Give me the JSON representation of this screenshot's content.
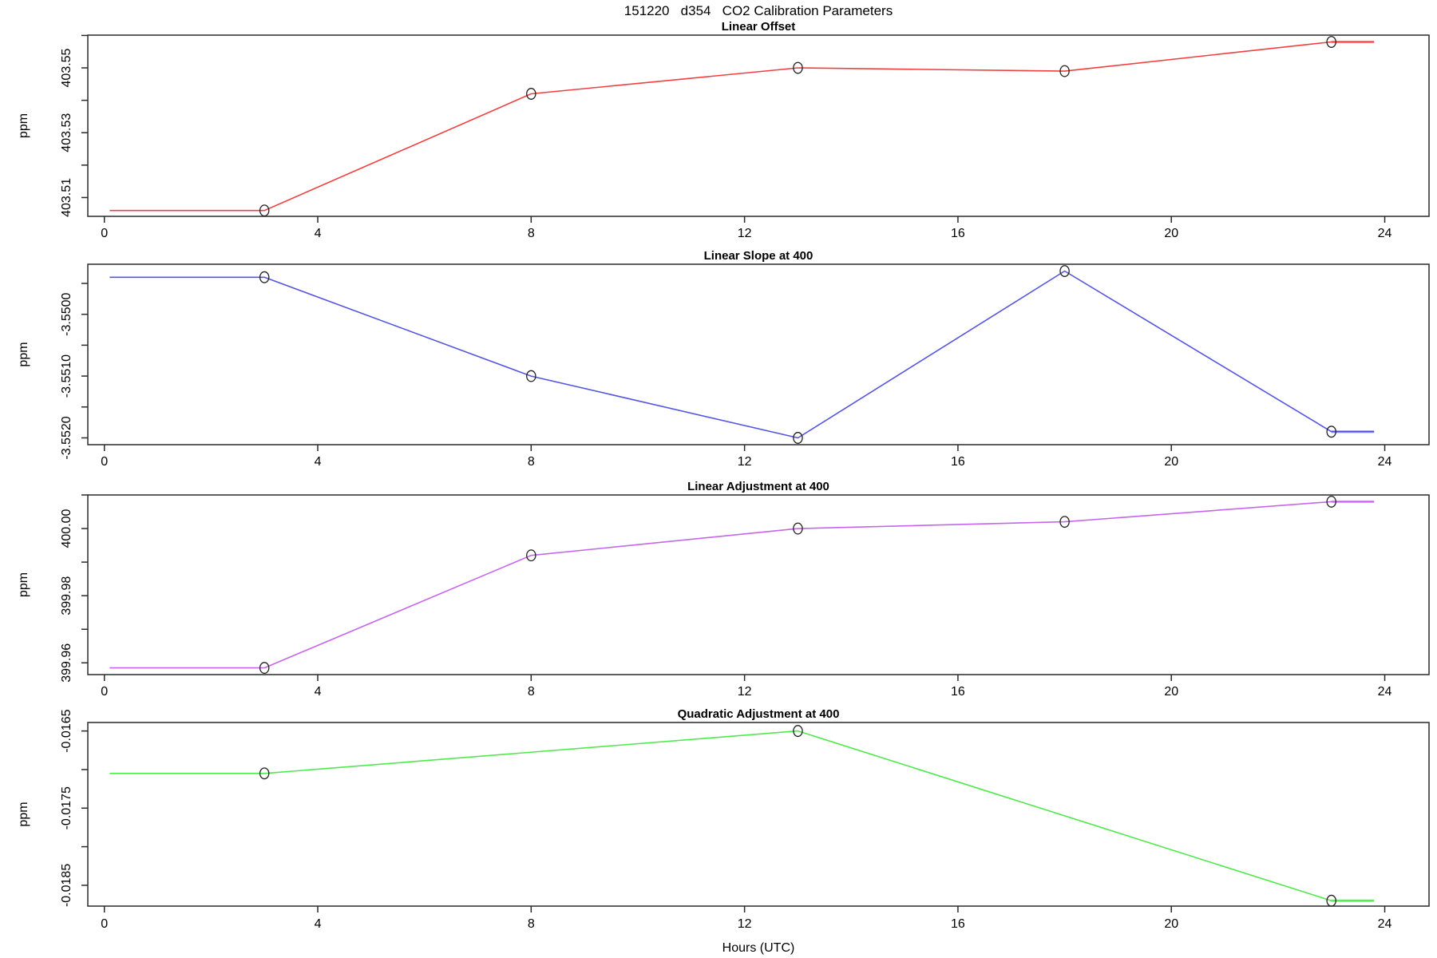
{
  "header": {
    "title": "151220   d354   CO2 Calibration Parameters"
  },
  "axes": {
    "xlabel": "Hours (UTC)",
    "ylabel": "ppm"
  },
  "chart_data": [
    {
      "type": "line",
      "title": "Linear Offset",
      "ylabel": "ppm",
      "color": "#f03030",
      "marker": "open-circle",
      "x": [
        0.1,
        3,
        8,
        13,
        18,
        23,
        23.8
      ],
      "y": [
        403.506,
        403.506,
        403.542,
        403.55,
        403.549,
        403.558,
        403.558
      ],
      "markers_at_x": [
        3,
        8,
        13,
        18,
        23
      ],
      "markers_at_y": [
        403.506,
        403.542,
        403.55,
        403.549,
        403.558
      ],
      "xlim": [
        -0.31,
        24.83
      ],
      "x_ticks": [
        0,
        4,
        8,
        12,
        16,
        20,
        24
      ],
      "ylim": [
        403.5042,
        403.5601
      ],
      "y_ticks": [
        {
          "v": 403.51,
          "label": "403.51"
        },
        {
          "v": 403.52,
          "label": ""
        },
        {
          "v": 403.53,
          "label": "403.53"
        },
        {
          "v": 403.54,
          "label": ""
        },
        {
          "v": 403.55,
          "label": "403.55"
        },
        {
          "v": 403.56,
          "label": ""
        }
      ],
      "grid": false,
      "legend": "none"
    },
    {
      "type": "line",
      "title": "Linear Slope at 400",
      "ylabel": "ppm",
      "color": "#4646de",
      "marker": "open-circle",
      "x": [
        0.1,
        3,
        8,
        13,
        18,
        23,
        23.8
      ],
      "y": [
        -3.5494,
        -3.5494,
        -3.551,
        -3.552,
        -3.5493,
        -3.5519,
        -3.5519
      ],
      "markers_at_x": [
        3,
        8,
        13,
        18,
        23
      ],
      "markers_at_y": [
        -3.5494,
        -3.551,
        -3.552,
        -3.5493,
        -3.5519
      ],
      "xlim": [
        -0.31,
        24.83
      ],
      "x_ticks": [
        0,
        4,
        8,
        12,
        16,
        20,
        24
      ],
      "ylim": [
        -3.55211,
        -3.54919
      ],
      "y_ticks": [
        {
          "v": -3.552,
          "label": "-3.5520"
        },
        {
          "v": -3.5515,
          "label": ""
        },
        {
          "v": -3.551,
          "label": "-3.5510"
        },
        {
          "v": -3.5505,
          "label": ""
        },
        {
          "v": -3.55,
          "label": "-3.5500"
        },
        {
          "v": -3.5495,
          "label": ""
        }
      ],
      "grid": false,
      "legend": "none"
    },
    {
      "type": "line",
      "title": "Linear Adjustment at 400",
      "ylabel": "ppm",
      "color": "#c158ec",
      "marker": "open-circle",
      "x": [
        0.1,
        3,
        8,
        13,
        18,
        23,
        23.8
      ],
      "y": [
        399.9585,
        399.9585,
        399.992,
        400.0,
        400.002,
        400.008,
        400.008
      ],
      "markers_at_x": [
        3,
        8,
        13,
        18,
        23
      ],
      "markers_at_y": [
        399.9585,
        399.992,
        400.0,
        400.002,
        400.008
      ],
      "xlim": [
        -0.31,
        24.83
      ],
      "x_ticks": [
        0,
        4,
        8,
        12,
        16,
        20,
        24
      ],
      "ylim": [
        399.9565,
        400.01
      ],
      "y_ticks": [
        {
          "v": 399.96,
          "label": "399.96"
        },
        {
          "v": 399.97,
          "label": ""
        },
        {
          "v": 399.98,
          "label": "399.98"
        },
        {
          "v": 399.99,
          "label": ""
        },
        {
          "v": 400.0,
          "label": "400.00"
        },
        {
          "v": 400.01,
          "label": ""
        }
      ],
      "grid": false,
      "legend": "none"
    },
    {
      "type": "line",
      "title": "Quadratic Adjustment at 400",
      "ylabel": "ppm",
      "color": "#3fe83f",
      "marker": "open-circle",
      "x": [
        0.1,
        3,
        13,
        23,
        23.8
      ],
      "y": [
        -0.01705,
        -0.01705,
        -0.0165,
        -0.0187,
        -0.0187
      ],
      "markers_at_x": [
        3,
        13,
        23
      ],
      "markers_at_y": [
        -0.01705,
        -0.0165,
        -0.0187
      ],
      "xlim": [
        -0.31,
        24.83
      ],
      "x_ticks": [
        0,
        4,
        8,
        12,
        16,
        20,
        24
      ],
      "ylim": [
        -0.01877,
        -0.01639
      ],
      "y_ticks": [
        {
          "v": -0.0185,
          "label": "-0.0185"
        },
        {
          "v": -0.018,
          "label": ""
        },
        {
          "v": -0.0175,
          "label": "-0.0175"
        },
        {
          "v": -0.017,
          "label": ""
        },
        {
          "v": -0.0165,
          "label": "-0.0165"
        }
      ],
      "grid": false,
      "legend": "none"
    }
  ]
}
